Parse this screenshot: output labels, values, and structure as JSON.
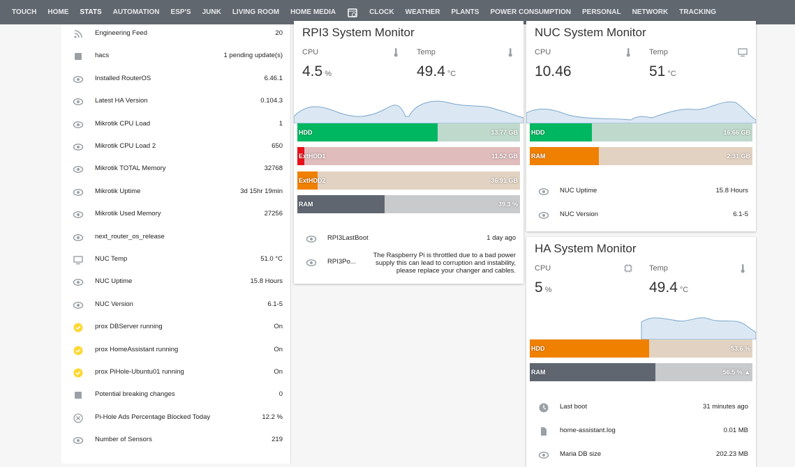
{
  "nav": {
    "tabs_before": [
      "TOUCH",
      "HOME",
      "STATS",
      "AUTOMATION",
      "ESP'S",
      "JUNK",
      "LIVING ROOM",
      "HOME MEDIA"
    ],
    "tabs_after": [
      "CLOCK",
      "WEATHER",
      "PLANTS",
      "POWER CONSUMPTION",
      "PERSONAL",
      "NETWORK",
      "TRACKING"
    ],
    "active_index": 2
  },
  "entities": [
    {
      "icon": "rss",
      "name": "Engineering Feed",
      "value": "20"
    },
    {
      "icon": "box",
      "name": "hacs",
      "value": "1 pending update(s)"
    },
    {
      "icon": "eye",
      "name": "Installed RouterOS",
      "value": "6.46.1"
    },
    {
      "icon": "eye",
      "name": "Latest HA Version",
      "value": "0.104.3"
    },
    {
      "icon": "eye",
      "name": "Mikrotik CPU Load",
      "value": "1"
    },
    {
      "icon": "eye",
      "name": "Mikrotik CPU Load 2",
      "value": "650"
    },
    {
      "icon": "eye",
      "name": "Mikrotik TOTAL Memory",
      "value": "32768"
    },
    {
      "icon": "eye",
      "name": "Mikrotik Uptime",
      "value": "3d 15hr 19min"
    },
    {
      "icon": "eye",
      "name": "Mikrotik Used Memory",
      "value": "27256"
    },
    {
      "icon": "eye",
      "name": "next_router_os_release"
    },
    {
      "icon": "monitor",
      "name": "NUC Temp",
      "value": "51.0 °C"
    },
    {
      "icon": "eye",
      "name": "NUC Uptime",
      "value": "15.8 Hours"
    },
    {
      "icon": "eye",
      "name": "NUC Version",
      "value": "6.1-5"
    },
    {
      "icon": "check",
      "name": "prox DBServer running",
      "value": "On"
    },
    {
      "icon": "check",
      "name": "prox HomeAssistant running",
      "value": "On"
    },
    {
      "icon": "check",
      "name": "prox PiHole-Ubuntu01 running",
      "value": "On"
    },
    {
      "icon": "box",
      "name": "Potential breaking changes",
      "value": "0"
    },
    {
      "icon": "x",
      "name": "Pi-Hole Ads Percentage Blocked Today",
      "value": "12.2 %"
    },
    {
      "icon": "eye",
      "name": "Number of Sensors",
      "value": "219"
    }
  ],
  "cards": [
    {
      "title": "RPI3 System Monitor",
      "cpu": {
        "label": "CPU",
        "value": "4.5",
        "unit": "%"
      },
      "temp": {
        "label": "Temp",
        "value": "49.4",
        "unit": "°C"
      },
      "bars": [
        {
          "label": "HDD",
          "value": "13.77 GB",
          "percent": 63,
          "color": "#00b761",
          "track": "#bfd9cc"
        },
        {
          "label": "ExtHDD1",
          "value": "11.52 GB",
          "percent": 3,
          "color": "#e8101a",
          "track": "#e0bcbc"
        },
        {
          "label": "ExtHDD2",
          "value": "36.91 GB",
          "percent": 9,
          "color": "#f08000",
          "track": "#e2d2c2"
        },
        {
          "label": "RAM",
          "value": "39.3 %",
          "percent": 39.3,
          "color": "#5f6670",
          "track": "#c9cacc"
        }
      ],
      "entities": [
        {
          "icon": "eye",
          "name": "RPI3LastBoot",
          "value": "1 day ago"
        },
        {
          "icon": "eye",
          "name": "RPI3Po...",
          "value": "The Raspberry Pi is throttled due to a bad power supply this can lead to corruption and instability, please replace your changer and cables."
        }
      ]
    },
    {
      "title": "NUC System Monitor",
      "cpu": {
        "label": "CPU",
        "value": "10.46"
      },
      "temp": {
        "label": "Temp",
        "value": "51",
        "unit": "°C"
      },
      "bars": [
        {
          "label": "HDD",
          "value": "16.66 GB",
          "percent": 28,
          "color": "#00b761",
          "track": "#bfd9cc"
        },
        {
          "label": "RAM",
          "value": "2.31 GB",
          "percent": 31,
          "color": "#f08000",
          "track": "#e2d2c2"
        }
      ],
      "entities": [
        {
          "icon": "eye",
          "name": "NUC Uptime",
          "value": "15.8 Hours"
        },
        {
          "icon": "eye",
          "name": "NUC Version",
          "value": "6.1-5"
        }
      ]
    },
    {
      "title": "HA System Monitor",
      "cpu": {
        "label": "CPU",
        "value": "5",
        "unit": "%"
      },
      "temp": {
        "label": "Temp",
        "value": "49.4",
        "unit": "°C"
      },
      "bars": [
        {
          "label": "HDD",
          "value": "53.6 %",
          "percent": 53.6,
          "color": "#f08000",
          "track": "#e2d2c2"
        },
        {
          "label": "RAM",
          "value": "56.5 % ▲",
          "percent": 56.5,
          "color": "#5f6670",
          "track": "#c9cacc"
        }
      ],
      "entities": [
        {
          "icon": "clock",
          "name": "Last boot",
          "value": "31 minutes ago"
        },
        {
          "icon": "file",
          "name": "home-assistant.log",
          "value": "0.01 MB"
        },
        {
          "icon": "eye",
          "name": "Maria DB size",
          "value": "202.23 MB"
        }
      ]
    }
  ]
}
